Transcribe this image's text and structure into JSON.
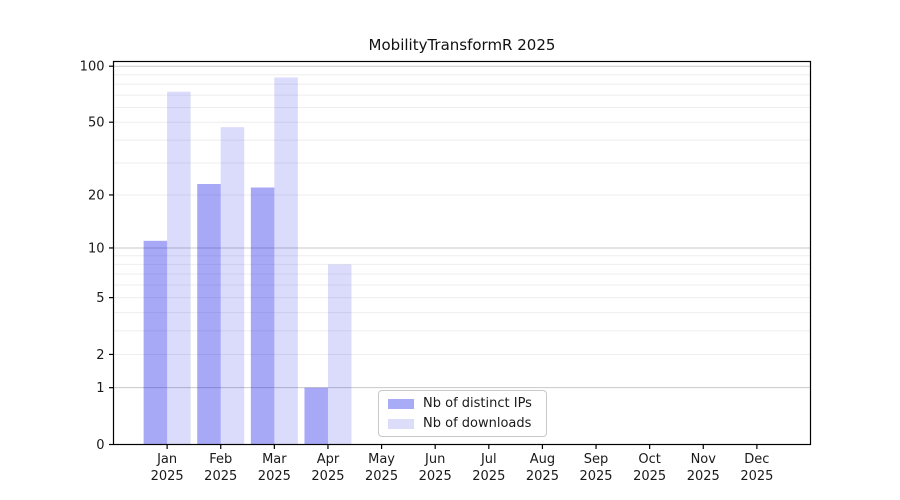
{
  "chart_data": {
    "type": "bar",
    "title": "MobilityTransformR 2025",
    "year_line": "2025",
    "categories": [
      "Jan",
      "Feb",
      "Mar",
      "Apr",
      "May",
      "Jun",
      "Jul",
      "Aug",
      "Sep",
      "Oct",
      "Nov",
      "Dec"
    ],
    "series": [
      {
        "name": "Nb of distinct IPs",
        "color": "rgba(30,34,232,0.39)",
        "solid_color": "#a8acf6",
        "values": [
          11,
          23,
          22,
          1,
          0,
          0,
          0,
          0,
          0,
          0,
          0,
          0
        ]
      },
      {
        "name": "Nb of downloads",
        "color": "rgba(30,34,232,0.16)",
        "solid_color": "#dbddf9",
        "values": [
          73,
          47,
          87,
          8,
          0,
          0,
          0,
          0,
          0,
          0,
          0,
          0
        ]
      }
    ],
    "yscale": "log1p",
    "ylim": [
      0,
      110
    ],
    "y_ticks": [
      0,
      1,
      2,
      5,
      10,
      20,
      50,
      100
    ],
    "major_gridlines": [
      1,
      10,
      100
    ],
    "minor_gridlines": [
      2,
      3,
      4,
      5,
      6,
      7,
      8,
      9,
      20,
      30,
      40,
      50,
      60,
      70,
      80,
      90
    ],
    "grid": true,
    "legend_position": "lower center",
    "xlabel": "",
    "ylabel": ""
  },
  "legend": {
    "entries": [
      {
        "label": "Nb of distinct IPs"
      },
      {
        "label": "Nb of downloads"
      }
    ]
  },
  "colors": {
    "ips_bar": "rgba(30,34,232,0.39)",
    "downloads_bar": "rgba(30,34,232,0.16)",
    "major_grid": "#c8c8c8",
    "minor_grid": "#eeeeee",
    "spine": "#000000",
    "tick_text": "#1a1a1a"
  }
}
